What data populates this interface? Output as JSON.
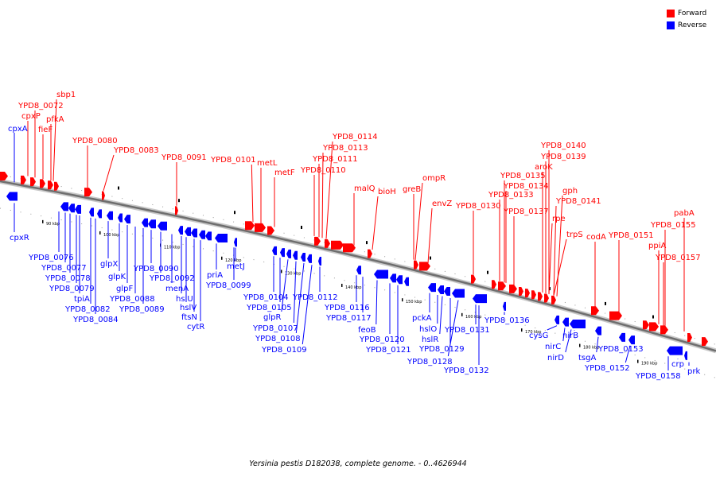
{
  "caption": "Yersinia pestis D182038, complete genome. - 0..4626944",
  "legend": {
    "forward": {
      "label": "Forward",
      "color": "#ff0000"
    },
    "reverse": {
      "label": "Reverse",
      "color": "#0000ff"
    }
  },
  "ticks": [
    "90 kbp",
    "100 kbp",
    "110 kbp",
    "120 kbp",
    "130 kbp",
    "140 kbp",
    "150 kbp",
    "160 kbp",
    "170 kbp",
    "180 kbp",
    "190 kbp"
  ],
  "forward_genes": [
    "sbp1",
    "YPD8_0072",
    "cpxP",
    "pfkA",
    "fieF",
    "YPD8_0080",
    "YPD8_0083",
    "YPD8_0091",
    "YPD8_0101",
    "metL",
    "metF",
    "YPD8_0114",
    "YPD8_0113",
    "YPD8_0111",
    "YPD8_0110",
    "malQ",
    "bioH",
    "ompR",
    "greB",
    "envZ",
    "YPD8_0130",
    "YPD8_0140",
    "YPD8_0139",
    "aroK",
    "YPD8_0135",
    "YPD8_0134",
    "YPD8_0133",
    "gph",
    "YPD8_0141",
    "YPD8_0137",
    "rpe",
    "trpS",
    "codA",
    "YPD8_0151",
    "pabA",
    "YPD8_0155",
    "ppiA",
    "YPD8_0157"
  ],
  "reverse_genes": [
    "cpxA",
    "cpxR",
    "YPD8_0076",
    "YPD8_0077",
    "YPD8_0078",
    "YPD8_0079",
    "tpiA",
    "YPD8_0082",
    "YPD8_0084",
    "glpX",
    "glpK",
    "glpF",
    "YPD8_0088",
    "YPD8_0089",
    "YPD8_0090",
    "YPD8_0092",
    "menA",
    "hslU",
    "hslV",
    "ftsN",
    "cytR",
    "priA",
    "metJ",
    "YPD8_0099",
    "YPD8_0104",
    "YPD8_0105",
    "glpR",
    "YPD8_0107",
    "YPD8_0108",
    "YPD8_0109",
    "YPD8_0112",
    "YPD8_0116",
    "YPD8_0117",
    "feoB",
    "YPD8_0120",
    "YPD8_0121",
    "pckA",
    "hslO",
    "hslR",
    "YPD8_0129",
    "YPD8_0128",
    "YPD8_0131",
    "YPD8_0132",
    "YPD8_0136",
    "cysG",
    "nirC",
    "nirD",
    "nirB",
    "tsgA",
    "YPD8_0153",
    "YPD8_0152",
    "YPD8_0158",
    "crp",
    "prk"
  ]
}
